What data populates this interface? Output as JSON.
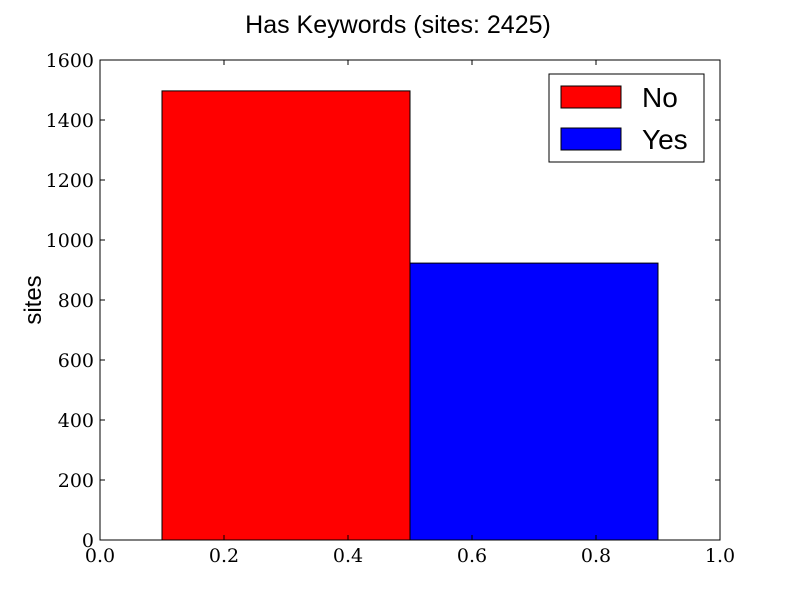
{
  "chart_data": {
    "type": "bar",
    "title": "Has Keywords (sites: 2425)",
    "xlabel": "",
    "ylabel": "sites",
    "xlim": [
      0.0,
      1.0
    ],
    "ylim": [
      0,
      1600
    ],
    "xticks": [
      "0.0",
      "0.2",
      "0.4",
      "0.6",
      "0.8",
      "1.0"
    ],
    "yticks": [
      "0",
      "200",
      "400",
      "600",
      "800",
      "1000",
      "1200",
      "1400",
      "1600"
    ],
    "grid": false,
    "legend_position": "top-right",
    "series": [
      {
        "name": "No",
        "x_start": 0.1,
        "x_end": 0.5,
        "value": 1497,
        "color": "#ff0000"
      },
      {
        "name": "Yes",
        "x_start": 0.5,
        "x_end": 0.9,
        "value": 923,
        "color": "#0000ff"
      }
    ]
  }
}
